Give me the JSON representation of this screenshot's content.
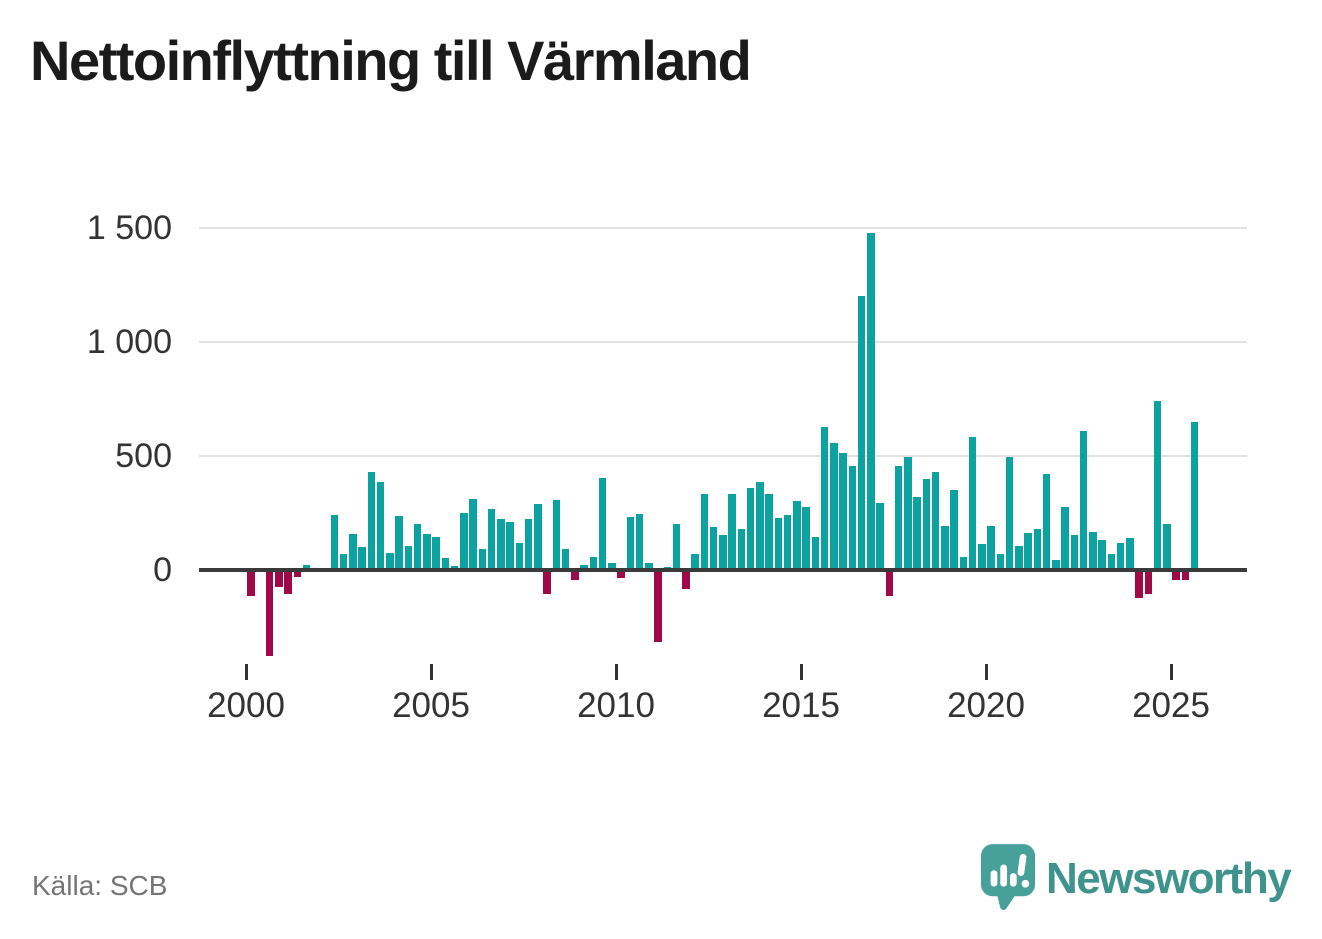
{
  "chart_data": {
    "type": "bar",
    "title": "Nettoinflyttning till Värmland",
    "frequency": "quarterly",
    "x_tick_labels": [
      "2000",
      "2005",
      "2010",
      "2015",
      "2020",
      "2025"
    ],
    "y_tick_values": [
      0,
      500,
      1000,
      1500
    ],
    "y_tick_labels": [
      "0",
      "500",
      "1 000",
      "1 500"
    ],
    "ylim": [
      -400,
      1550
    ],
    "grid": "horizontal",
    "legend": "none",
    "positive_color": "#0ca2a0",
    "negative_color": "#a00848",
    "points": [
      [
        "2000-Q1",
        -105
      ],
      [
        "2000-Q2",
        0
      ],
      [
        "2000-Q3",
        -370
      ],
      [
        "2000-Q4",
        -66
      ],
      [
        "2001-Q1",
        -96
      ],
      [
        "2001-Q2",
        -22
      ],
      [
        "2001-Q3",
        20
      ],
      [
        "2001-Q4",
        0
      ],
      [
        "2002-Q1",
        0
      ],
      [
        "2002-Q2",
        240
      ],
      [
        "2002-Q3",
        70
      ],
      [
        "2002-Q4",
        158
      ],
      [
        "2003-Q1",
        100
      ],
      [
        "2003-Q2",
        430
      ],
      [
        "2003-Q3",
        385
      ],
      [
        "2003-Q4",
        75
      ],
      [
        "2004-Q1",
        237
      ],
      [
        "2004-Q2",
        105
      ],
      [
        "2004-Q3",
        200
      ],
      [
        "2004-Q4",
        157
      ],
      [
        "2005-Q1",
        145
      ],
      [
        "2005-Q2",
        53
      ],
      [
        "2005-Q3",
        18
      ],
      [
        "2005-Q4",
        250
      ],
      [
        "2006-Q1",
        310
      ],
      [
        "2006-Q2",
        91
      ],
      [
        "2006-Q3",
        268
      ],
      [
        "2006-Q4",
        225
      ],
      [
        "2007-Q1",
        210
      ],
      [
        "2007-Q2",
        120
      ],
      [
        "2007-Q3",
        222
      ],
      [
        "2007-Q4",
        290
      ],
      [
        "2008-Q1",
        -96
      ],
      [
        "2008-Q2",
        307
      ],
      [
        "2008-Q3",
        92
      ],
      [
        "2008-Q4",
        -35
      ],
      [
        "2009-Q1",
        22
      ],
      [
        "2009-Q2",
        57
      ],
      [
        "2009-Q3",
        405
      ],
      [
        "2009-Q4",
        31
      ],
      [
        "2010-Q1",
        -26
      ],
      [
        "2010-Q2",
        232
      ],
      [
        "2010-Q3",
        246
      ],
      [
        "2010-Q4",
        31
      ],
      [
        "2011-Q1",
        -305
      ],
      [
        "2011-Q2",
        15
      ],
      [
        "2011-Q3",
        200
      ],
      [
        "2011-Q4",
        -75
      ],
      [
        "2012-Q1",
        70
      ],
      [
        "2012-Q2",
        333
      ],
      [
        "2012-Q3",
        188
      ],
      [
        "2012-Q4",
        154
      ],
      [
        "2013-Q1",
        333
      ],
      [
        "2013-Q2",
        180
      ],
      [
        "2013-Q3",
        360
      ],
      [
        "2013-Q4",
        386
      ],
      [
        "2014-Q1",
        332
      ],
      [
        "2014-Q2",
        230
      ],
      [
        "2014-Q3",
        243
      ],
      [
        "2014-Q4",
        303
      ],
      [
        "2015-Q1",
        278
      ],
      [
        "2015-Q2",
        146
      ],
      [
        "2015-Q3",
        626
      ],
      [
        "2015-Q4",
        557
      ],
      [
        "2016-Q1",
        513
      ],
      [
        "2016-Q2",
        456
      ],
      [
        "2016-Q3",
        1200
      ],
      [
        "2016-Q4",
        1480
      ],
      [
        "2017-Q1",
        294
      ],
      [
        "2017-Q2",
        -105
      ],
      [
        "2017-Q3",
        458
      ],
      [
        "2017-Q4",
        497
      ],
      [
        "2018-Q1",
        319
      ],
      [
        "2018-Q2",
        398
      ],
      [
        "2018-Q3",
        428
      ],
      [
        "2018-Q4",
        194
      ],
      [
        "2019-Q1",
        351
      ],
      [
        "2019-Q2",
        58
      ],
      [
        "2019-Q3",
        582
      ],
      [
        "2019-Q4",
        114
      ],
      [
        "2020-Q1",
        191
      ],
      [
        "2020-Q2",
        70
      ],
      [
        "2020-Q3",
        497
      ],
      [
        "2020-Q4",
        105
      ],
      [
        "2021-Q1",
        164
      ],
      [
        "2021-Q2",
        178
      ],
      [
        "2021-Q3",
        421
      ],
      [
        "2021-Q4",
        44
      ],
      [
        "2022-Q1",
        275
      ],
      [
        "2022-Q2",
        154
      ],
      [
        "2022-Q3",
        610
      ],
      [
        "2022-Q4",
        168
      ],
      [
        "2023-Q1",
        132
      ],
      [
        "2023-Q2",
        70
      ],
      [
        "2023-Q3",
        117
      ],
      [
        "2023-Q4",
        139
      ],
      [
        "2024-Q1",
        -114
      ],
      [
        "2024-Q2",
        -95
      ],
      [
        "2024-Q3",
        741
      ],
      [
        "2024-Q4",
        200
      ],
      [
        "2025-Q1",
        -34
      ],
      [
        "2025-Q2",
        -34
      ],
      [
        "2025-Q3",
        648
      ]
    ]
  },
  "source": {
    "label": "Källa: SCB"
  },
  "branding": {
    "name": "Newsworthy",
    "logo_icon": "speech-bubble-bar-chart-icon",
    "color": "#3e948d"
  }
}
